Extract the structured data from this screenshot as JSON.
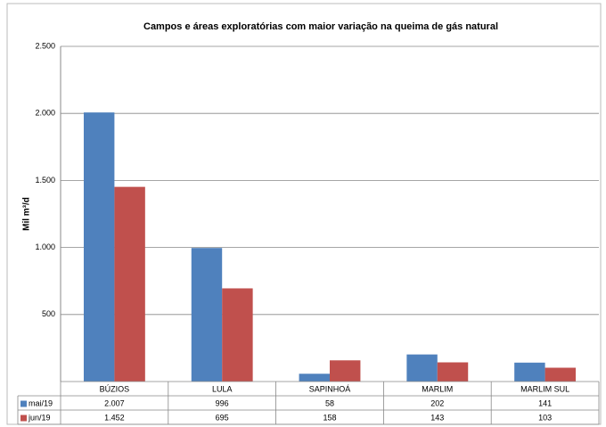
{
  "chart_data": {
    "type": "bar",
    "title": "Campos e áreas exploratórias com maior variação na queima de gás natural",
    "y_label": "Mil m³/d",
    "categories": [
      "BÚZIOS",
      "LULA",
      "SAPINHOÁ",
      "MARLIM",
      "MARLIM SUL"
    ],
    "series": [
      {
        "name": "mai/19",
        "color": "#4f81bd",
        "values": [
          2007,
          996,
          58,
          202,
          141
        ],
        "value_labels": [
          "2.007",
          "996",
          "58",
          "202",
          "141"
        ]
      },
      {
        "name": "jun/19",
        "color": "#c0504d",
        "values": [
          1452,
          695,
          158,
          143,
          103
        ],
        "value_labels": [
          "1.452",
          "695",
          "158",
          "143",
          "103"
        ]
      }
    ],
    "ylim": [
      0,
      2500
    ],
    "yticks": [
      500,
      {
        "value": 1000,
        "label": "1.000"
      },
      {
        "value": 1500,
        "label": "1.500"
      },
      {
        "value": 2000,
        "label": "2.000"
      },
      {
        "value": 2500,
        "label": "2.500"
      }
    ],
    "grid": true
  }
}
